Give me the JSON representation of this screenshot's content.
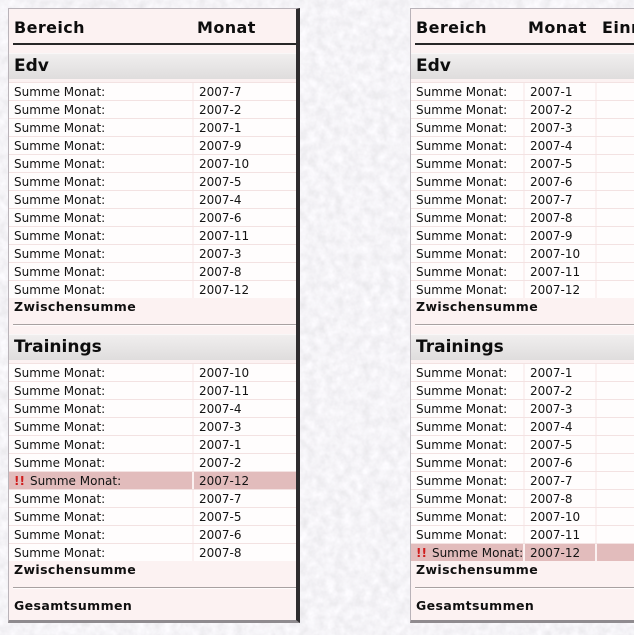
{
  "alert_marker": "!!",
  "colors": {
    "highlight_row": "#e2bcbc",
    "alert_marker": "#cf1d1d",
    "section_bar": "#e6e4e4",
    "panel_bg": "#fcf2f2"
  },
  "panels": [
    {
      "id": "left",
      "columns": [
        "Bereich",
        "Monat"
      ],
      "sections": [
        {
          "title": "Edv",
          "subtotal_label": "Zwischensumme",
          "rows": [
            {
              "label": "Summe Monat:",
              "value": "2007-7"
            },
            {
              "label": "Summe Monat:",
              "value": "2007-2"
            },
            {
              "label": "Summe Monat:",
              "value": "2007-1"
            },
            {
              "label": "Summe Monat:",
              "value": "2007-9"
            },
            {
              "label": "Summe Monat:",
              "value": "2007-10"
            },
            {
              "label": "Summe Monat:",
              "value": "2007-5"
            },
            {
              "label": "Summe Monat:",
              "value": "2007-4"
            },
            {
              "label": "Summe Monat:",
              "value": "2007-6"
            },
            {
              "label": "Summe Monat:",
              "value": "2007-11"
            },
            {
              "label": "Summe Monat:",
              "value": "2007-3"
            },
            {
              "label": "Summe Monat:",
              "value": "2007-8"
            },
            {
              "label": "Summe Monat:",
              "value": "2007-12"
            }
          ]
        },
        {
          "title": "Trainings",
          "subtotal_label": "Zwischensumme",
          "rows": [
            {
              "label": "Summe Monat:",
              "value": "2007-10"
            },
            {
              "label": "Summe Monat:",
              "value": "2007-11"
            },
            {
              "label": "Summe Monat:",
              "value": "2007-4"
            },
            {
              "label": "Summe Monat:",
              "value": "2007-3"
            },
            {
              "label": "Summe Monat:",
              "value": "2007-1"
            },
            {
              "label": "Summe Monat:",
              "value": "2007-2"
            },
            {
              "label": "Summe Monat:",
              "value": "2007-12",
              "alert": true
            },
            {
              "label": "Summe Monat:",
              "value": "2007-7"
            },
            {
              "label": "Summe Monat:",
              "value": "2007-5"
            },
            {
              "label": "Summe Monat:",
              "value": "2007-6"
            },
            {
              "label": "Summe Monat:",
              "value": "2007-8"
            }
          ]
        }
      ],
      "footer_label": "Gesamtsummen"
    },
    {
      "id": "right",
      "columns": [
        "Bereich",
        "Monat",
        "Einn"
      ],
      "sections": [
        {
          "title": "Edv",
          "subtotal_label": "Zwischensumme",
          "rows": [
            {
              "label": "Summe Monat:",
              "value": "2007-1"
            },
            {
              "label": "Summe Monat:",
              "value": "2007-2"
            },
            {
              "label": "Summe Monat:",
              "value": "2007-3"
            },
            {
              "label": "Summe Monat:",
              "value": "2007-4"
            },
            {
              "label": "Summe Monat:",
              "value": "2007-5"
            },
            {
              "label": "Summe Monat:",
              "value": "2007-6"
            },
            {
              "label": "Summe Monat:",
              "value": "2007-7"
            },
            {
              "label": "Summe Monat:",
              "value": "2007-8"
            },
            {
              "label": "Summe Monat:",
              "value": "2007-9"
            },
            {
              "label": "Summe Monat:",
              "value": "2007-10"
            },
            {
              "label": "Summe Monat:",
              "value": "2007-11"
            },
            {
              "label": "Summe Monat:",
              "value": "2007-12"
            }
          ]
        },
        {
          "title": "Trainings",
          "subtotal_label": "Zwischensumme",
          "rows": [
            {
              "label": "Summe Monat:",
              "value": "2007-1"
            },
            {
              "label": "Summe Monat:",
              "value": "2007-2"
            },
            {
              "label": "Summe Monat:",
              "value": "2007-3"
            },
            {
              "label": "Summe Monat:",
              "value": "2007-4"
            },
            {
              "label": "Summe Monat:",
              "value": "2007-5"
            },
            {
              "label": "Summe Monat:",
              "value": "2007-6"
            },
            {
              "label": "Summe Monat:",
              "value": "2007-7"
            },
            {
              "label": "Summe Monat:",
              "value": "2007-8"
            },
            {
              "label": "Summe Monat:",
              "value": "2007-10"
            },
            {
              "label": "Summe Monat:",
              "value": "2007-11"
            },
            {
              "label": "Summe Monat:",
              "value": "2007-12",
              "alert": true
            }
          ]
        }
      ],
      "footer_label": "Gesamtsummen"
    }
  ]
}
